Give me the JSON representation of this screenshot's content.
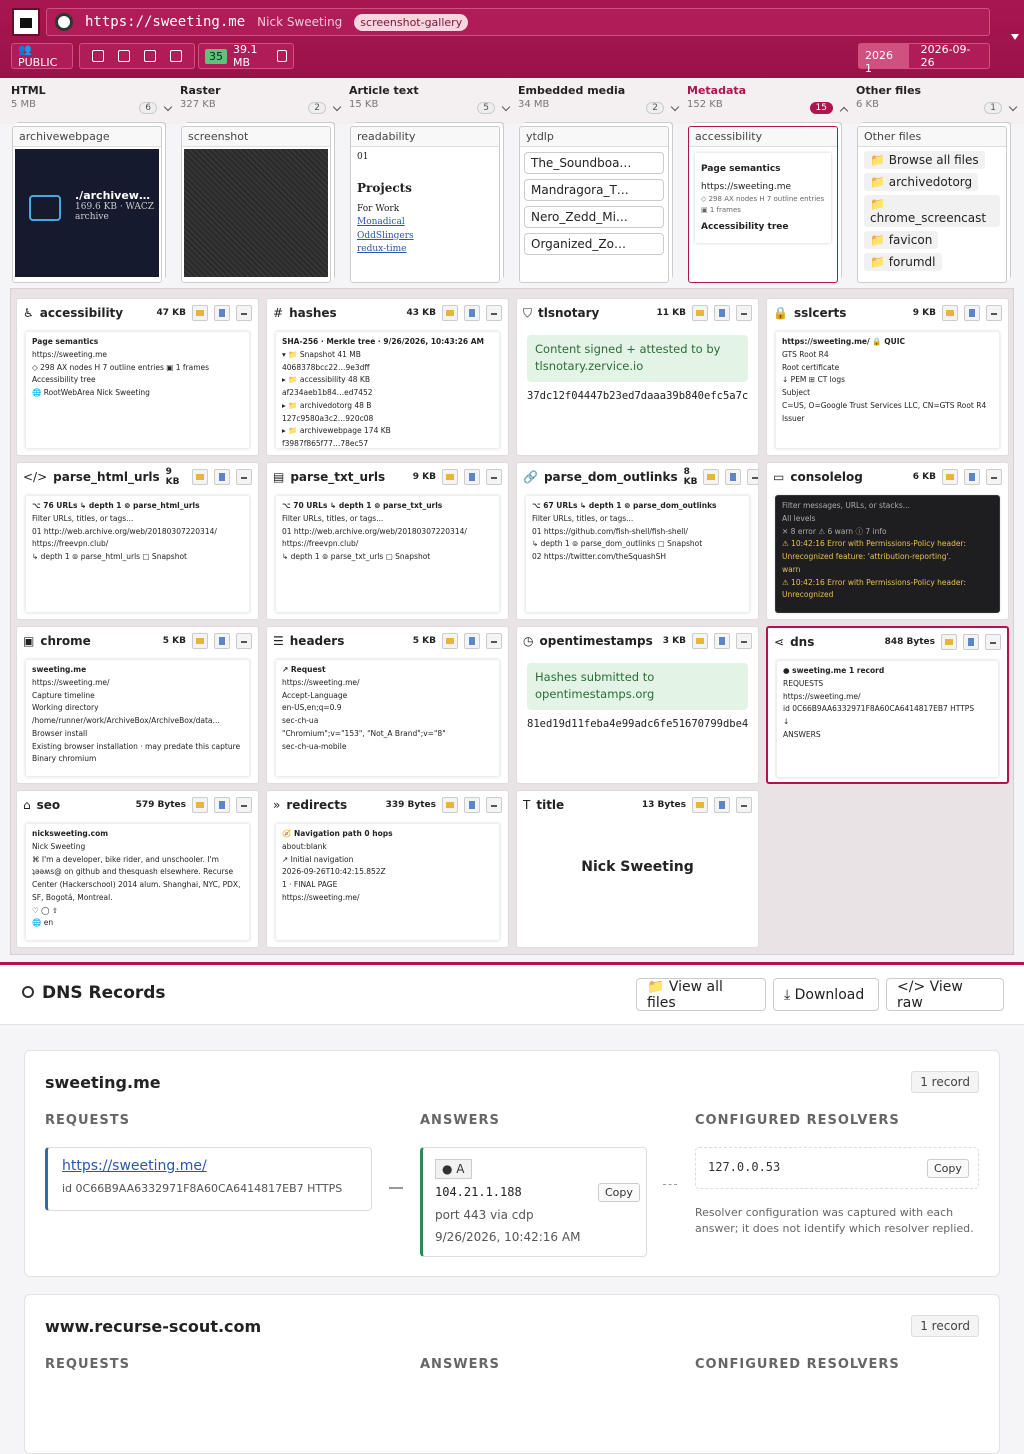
{
  "header": {
    "url": "https://sweeting.me",
    "site_title": "Nick Sweeting",
    "tag": "screenshot-gallery",
    "visibility": "👥PUBLIC",
    "file_count": "35",
    "total_size": "39.1 MB",
    "snapshot_year": "2026 1",
    "snapshot_date": "2026-09-26"
  },
  "tabs": [
    {
      "label": "HTML",
      "size": "5 MB",
      "count": "6"
    },
    {
      "label": "Raster",
      "size": "327 KB",
      "count": "2"
    },
    {
      "label": "Article text",
      "size": "15 KB",
      "count": "5"
    },
    {
      "label": "Embedded media",
      "size": "34 MB",
      "count": "2"
    },
    {
      "label": "Metadata",
      "size": "152 KB",
      "count": "15",
      "active": true
    },
    {
      "label": "Other files",
      "size": "6 KB",
      "count": "1"
    }
  ],
  "previews": [
    {
      "title": "archivewebpage",
      "kind": "dark",
      "lines": [
        "./archivew…",
        "169.6 KB · WACZ",
        "archive"
      ]
    },
    {
      "title": "screenshot",
      "kind": "shot"
    },
    {
      "title": "readability",
      "kind": "doc",
      "lines": [
        "01",
        "Projects",
        "For Work",
        "Monadical",
        "OddSlingers",
        "redux-time"
      ]
    },
    {
      "title": "ytdlp",
      "kind": "items",
      "items": [
        "The_Soundboa…",
        "Mandragora_T…",
        "Nero_Zedd_Mi…",
        "Organized_Zo…"
      ]
    },
    {
      "title": "accessibility",
      "kind": "doc",
      "active": true,
      "lines": [
        "Page semantics",
        "https://sweeting.me",
        "◇ 298 AX nodes  H 7 outline entries  ▣ 1 frames",
        "Accessibility tree"
      ]
    },
    {
      "title": "Other files",
      "kind": "files",
      "items": [
        "📁 Browse all files",
        "📁 archivedotorg",
        "📁 chrome_screencast",
        "📁 favicon",
        "📁 forumdl"
      ]
    }
  ],
  "cards": [
    {
      "icon": "♿",
      "name": "accessibility",
      "size": "47 KB",
      "lines": [
        "Page semantics",
        "https://sweeting.me",
        "◇ 298 AX nodes   H 7 outline entries   ▣ 1 frames",
        "",
        "Accessibility tree",
        "🌐 RootWebArea  Nick Sweeting"
      ]
    },
    {
      "icon": "#",
      "name": "hashes",
      "size": "43 KB",
      "lines": [
        "SHA-256 · Merkle tree · 9/26/2026, 10:43:26 AM",
        "▾ 📁 Snapshot   41 MB",
        "4068378bcc22…9e3dff",
        "▸ 📁 accessibility   48 KB",
        "af234aeb1b84…ed7452",
        "▸ 📁 archivedotorg   48 B",
        "127c9580a3c2…920c08",
        "▸ 📁 archivewebpage   174 KB",
        "f3987f865f77…78ec57"
      ]
    },
    {
      "icon": "⛉",
      "name": "tlsnotary",
      "size": "11 KB",
      "notice": "Content signed + attested to by tlsnotary.zervice.io",
      "hash": "37dc12f04447b23ed7daaa39b840efc5a7c…"
    },
    {
      "icon": "🔒",
      "name": "sslcerts",
      "size": "9 KB",
      "lines": [
        "https://sweeting.me/   🔒 QUIC",
        "GTS Root R4",
        "Root certificate",
        "↓ PEM   ⊞ CT logs",
        "Subject",
        "C=US, O=Google Trust Services LLC, CN=GTS Root R4",
        "Issuer"
      ]
    },
    {
      "icon": "</>",
      "name": "parse_html_urls",
      "size": "9 KB",
      "lines": [
        "⌥ 76 URLs   ↳ depth 1   ⊚ parse_html_urls",
        "Filter URLs, titles, or tags...",
        "01  http://web.archive.org/web/20180307220314/",
        "https://freevpn.club/",
        "↳ depth 1   ⊚ parse_html_urls   ▢ Snapshot"
      ]
    },
    {
      "icon": "▤",
      "name": "parse_txt_urls",
      "size": "9 KB",
      "lines": [
        "⌥ 70 URLs   ↳ depth 1   ⊚ parse_txt_urls",
        "Filter URLs, titles, or tags...",
        "01  http://web.archive.org/web/20180307220314/",
        "https://freevpn.club/",
        "↳ depth 1   ⊚ parse_txt_urls   ▢ Snapshot"
      ]
    },
    {
      "icon": "🔗",
      "name": "parse_dom_outlinks",
      "size": "8 KB",
      "lines": [
        "⌥ 67 URLs   ↳ depth 1   ⊚ parse_dom_outlinks",
        "Filter URLs, titles, or tags...",
        "01  https://github.com/fish-shell/fish-shell/",
        "↳ depth 1   ⊚ parse_dom_outlinks   ▢ Snapshot",
        "02  https://twitter.com/theSquashSH"
      ]
    },
    {
      "icon": "▭",
      "name": "consolelog",
      "size": "6 KB",
      "dark": true,
      "lines": [
        "Filter messages, URLs, or stacks...",
        "All levels",
        "✕ 8 error   ⚠ 6 warn   ⓘ 7 info",
        "⚠ 10:42:16  Error with Permissions-Policy header: Unrecognized feature: 'attribution-reporting'.",
        "warn",
        "⚠ 10:42:16  Error with Permissions-Policy header: Unrecognized"
      ]
    },
    {
      "icon": "▣",
      "name": "chrome",
      "size": "5 KB",
      "lines": [
        "sweeting.me",
        "https://sweeting.me/",
        "Capture timeline",
        "Working directory  /home/runner/work/ArchiveBox/ArchiveBox/data…",
        "Browser install",
        "Existing browser installation · may predate this capture",
        "Binary   chromium"
      ]
    },
    {
      "icon": "☰",
      "name": "headers",
      "size": "5 KB",
      "lines": [
        "↗ Request",
        "https://sweeting.me/",
        "Accept-Language",
        "en-US,en;q=0.9",
        "sec-ch-ua",
        "\"Chromium\";v=\"153\", \"Not_A Brand\";v=\"8\"",
        "sec-ch-ua-mobile"
      ]
    },
    {
      "icon": "◷",
      "name": "opentimestamps",
      "size": "3 KB",
      "notice": "Hashes submitted to opentimestamps.org",
      "hash": "81ed19d11feba4e99adc6fe51670799dbe4…"
    },
    {
      "icon": "⋖",
      "name": "dns",
      "size": "848 Bytes",
      "active": true,
      "lines": [
        "● sweeting.me   1 record",
        "REQUESTS",
        "https://sweeting.me/",
        "id 0C66B9AA6332971F8A60CA6414817EB7 HTTPS",
        "↓",
        "ANSWERS"
      ]
    },
    {
      "icon": "⌂",
      "name": "seo",
      "size": "579 Bytes",
      "lines": [
        "nicksweeting.com",
        "Nick Sweeting",
        "⌘ I'm a developer, bike rider, and unschooler. I'm ʇǝǝʍs@ on github and thesquash elsewhere. Recurse Center (Hackerschool) 2014 alum. Shanghai, NYC, PDX, SF, Bogotá, Montreal.",
        "♡   ◯   ⇧",
        "🌐 en"
      ]
    },
    {
      "icon": "»",
      "name": "redirects",
      "size": "339 Bytes",
      "lines": [
        "🧭 Navigation path   0 hops",
        "about:blank",
        "↗ Initial navigation",
        "2026-09-26T10:42:15.852Z",
        "1 · FINAL PAGE",
        "https://sweeting.me/"
      ]
    },
    {
      "icon": "T",
      "name": "title",
      "size": "13 Bytes",
      "heading": "Nick Sweeting"
    }
  ],
  "dns": {
    "title": "DNS Records",
    "buttons": [
      "📁 View all files",
      "⤓ Download",
      "</> View raw"
    ],
    "labels": {
      "requests": "REQUESTS",
      "answers": "ANSWERS",
      "resolvers": "CONFIGURED RESOLVERS"
    },
    "records": [
      {
        "host": "sweeting.me",
        "count": "1 record",
        "request_url": "https://sweeting.me/",
        "request_id": "id 0C66B9AA6332971F8A60CA6414817EB7 HTTPS",
        "answer_type": "● A",
        "answer_ip": "104.21.1.188",
        "copy": "Copy",
        "answer_port": "port 443  via cdp",
        "answer_time": "9/26/2026, 10:42:16 AM",
        "resolver": "127.0.0.53",
        "note": "Resolver configuration was captured with each answer; it does not identify which resolver replied."
      },
      {
        "host": "www.recurse-scout.com",
        "count": "1 record"
      }
    ]
  }
}
